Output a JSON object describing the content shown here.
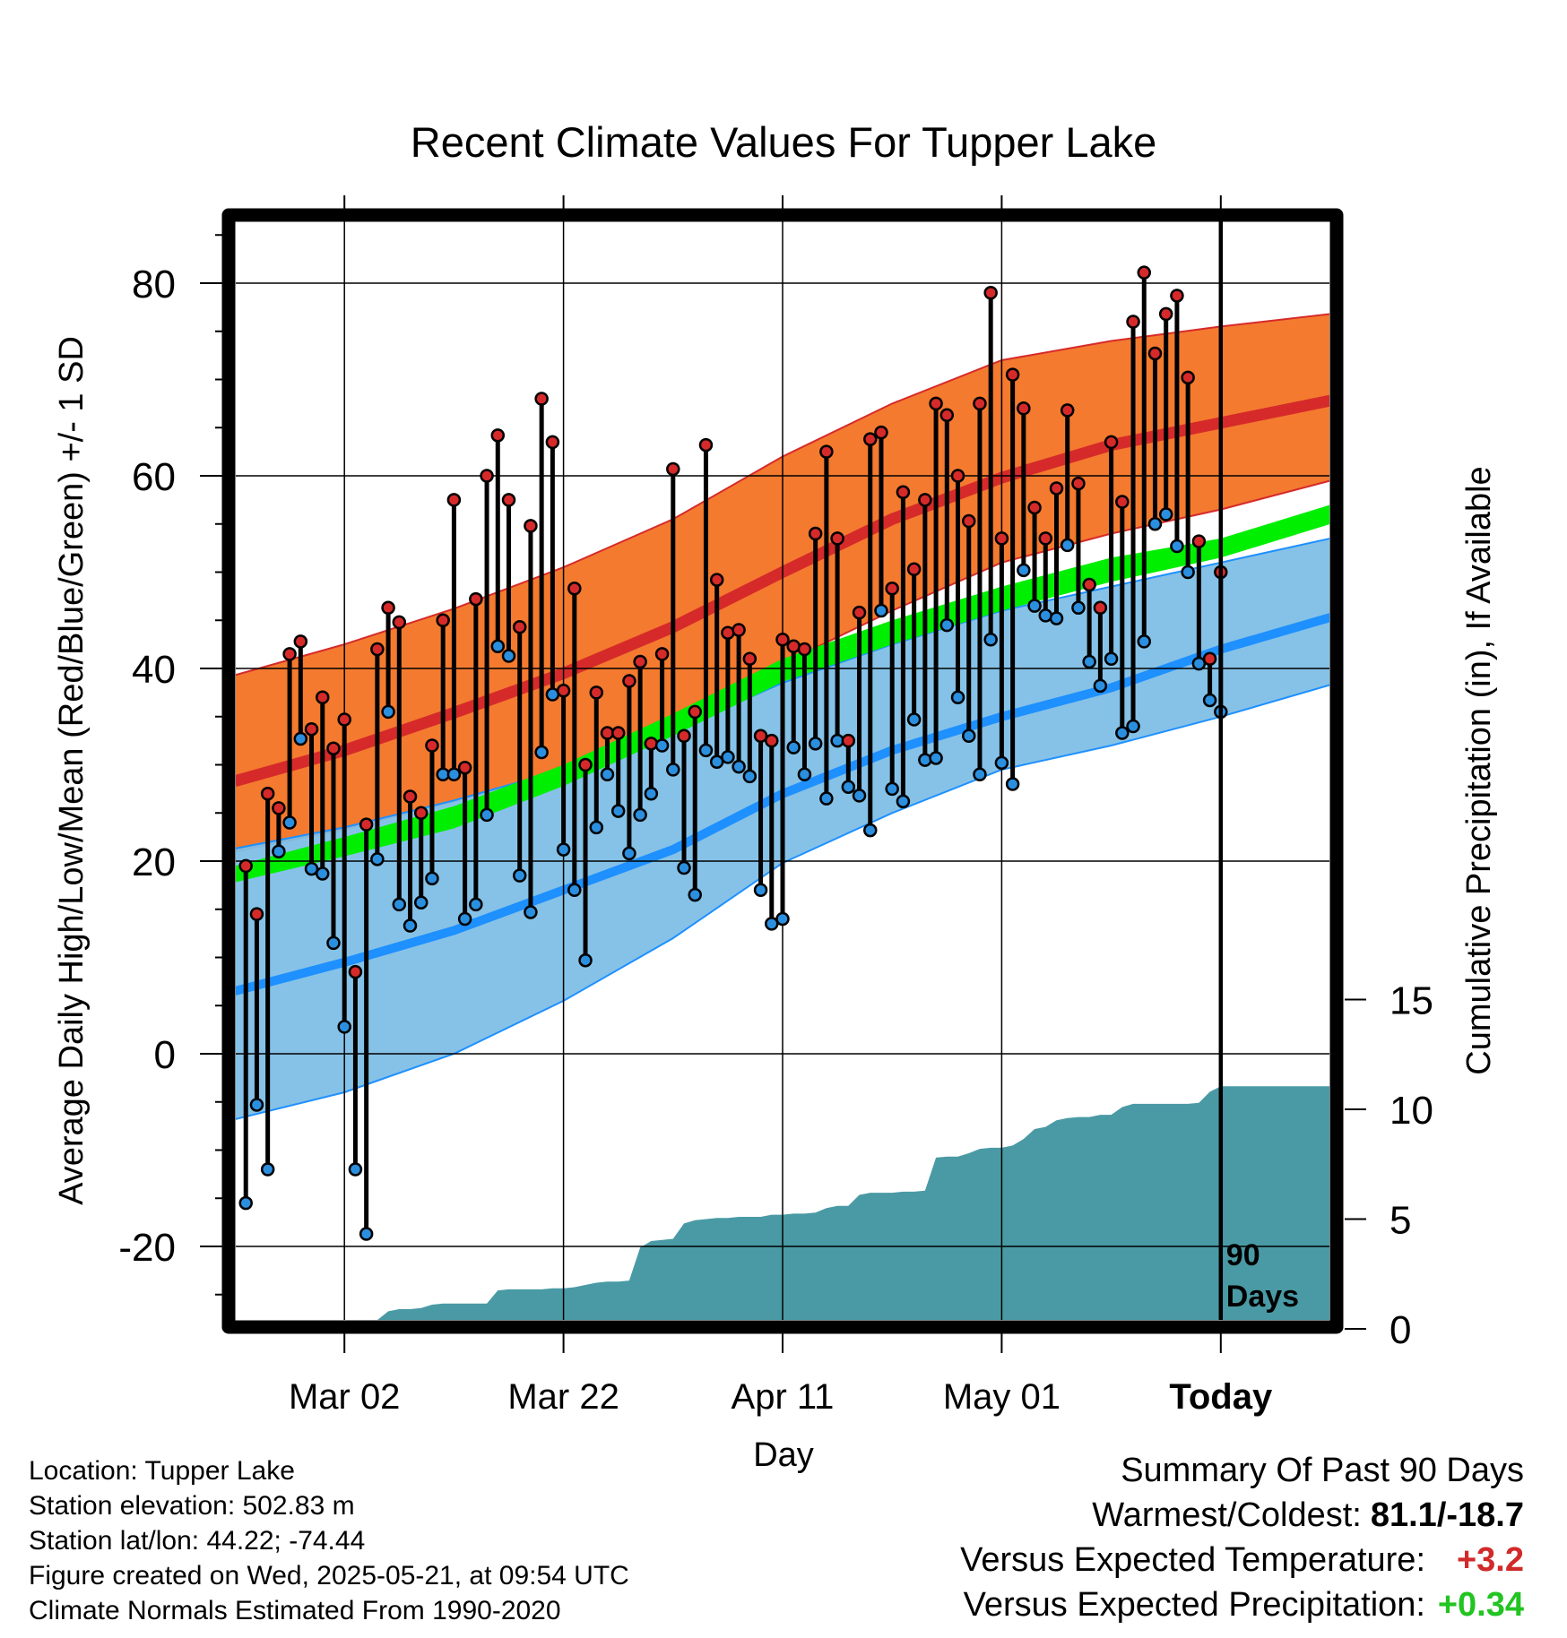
{
  "colors": {
    "high_band": "#f47a2f",
    "high_mean": "#d62a2a",
    "low_band": "#7fbfe6",
    "low_mean": "#1e90ff",
    "mean_band": "#00ee00",
    "precip_fill": "#4a9aa5",
    "high_dot": "#d62a2a",
    "low_dot": "#2b8fe0",
    "temp_anomaly": "#d12a2a",
    "precip_anomaly": "#22c422"
  },
  "footer": {
    "location": "Location: Tupper Lake",
    "elevation": "Station elevation: 502.83 m",
    "latlon": "Station lat/lon: 44.22; -74.44",
    "created": "Figure created on Wed, 2025-05-21, at 09:54 UTC",
    "normals": "Climate Normals Estimated From 1990-2020"
  },
  "summary": {
    "title": "Summary Of Past 90 Days",
    "warm_cold_label": "Warmest/Coldest:",
    "warm_cold_value": "81.1/-18.7",
    "temp_label": "Versus Expected Temperature:",
    "temp_value": "+3.2",
    "precip_label": "Versus Expected Precipitation:",
    "precip_value": "+0.34"
  },
  "chart_data": {
    "type": "line",
    "title": "Recent Climate Values For Tupper Lake",
    "xlabel": "Day",
    "ylabel": "Average Daily High/Low/Mean (Red/Blue/Green) +/- 1 SD",
    "y2label": "Cumulative Precipitation (in), If Available",
    "ylim": [
      -28,
      86
    ],
    "y_ticks": [
      -20,
      0,
      20,
      40,
      60,
      80
    ],
    "y2lim": [
      0,
      21
    ],
    "y2_ticks": [
      0,
      5,
      10,
      15
    ],
    "x_tick_labels": [
      "Mar 02",
      "Mar 22",
      "Apr 11",
      "May 01",
      "Today"
    ],
    "x_tick_days": [
      9,
      29,
      49,
      69,
      89
    ],
    "xlim": [
      -1,
      99
    ],
    "today_marker": {
      "day": 89,
      "label_line1": "90",
      "label_line2": "Days"
    },
    "grid": true,
    "normals": {
      "days": [
        -1,
        9,
        19,
        29,
        39,
        49,
        59,
        69,
        79,
        89,
        99
      ],
      "high_mean": [
        28.3,
        31.5,
        35.4,
        39.5,
        44.3,
        50,
        55.5,
        59.8,
        63.2,
        65.5,
        67.8
      ],
      "high_upper": [
        39.3,
        42.5,
        46.2,
        50.5,
        55.5,
        62,
        67.5,
        72,
        74,
        75.5,
        76.8
      ],
      "high_lower": [
        21,
        23.3,
        26.2,
        29.5,
        33.5,
        40.5,
        46,
        51,
        54,
        56.5,
        59.5
      ],
      "low_mean": [
        6.5,
        9.5,
        12.8,
        17,
        21.2,
        27,
        31.5,
        35,
        38,
        42,
        45.3
      ],
      "low_upper": [
        21.3,
        23.5,
        26.3,
        29.5,
        33.5,
        38.5,
        42.5,
        46,
        48.5,
        51,
        53.5
      ],
      "low_lower": [
        -6.8,
        -4,
        0,
        5.5,
        12,
        19.8,
        25,
        29.5,
        32,
        35,
        38.3
      ],
      "mean_upper": [
        19.5,
        22.5,
        25.7,
        30,
        35.3,
        41,
        45,
        48.5,
        51.5,
        53.5,
        57
      ],
      "mean_lower": [
        17.8,
        20.5,
        23.4,
        27.8,
        33,
        38.6,
        42.5,
        46,
        49,
        51.5,
        55
      ]
    },
    "series": [
      {
        "name": "High",
        "values": [
          19.5,
          14.5,
          27,
          25.5,
          41.5,
          42.8,
          33.7,
          37,
          31.7,
          34.7,
          8.5,
          23.8,
          42,
          46.3,
          44.8,
          26.7,
          25,
          32,
          45,
          57.5,
          29.7,
          47.2,
          60,
          64.2,
          57.5,
          44.3,
          54.8,
          68,
          63.5,
          37.7,
          48.3,
          30,
          37.5,
          33.3,
          33.3,
          38.7,
          40.7,
          32.2,
          41.5,
          60.7,
          33,
          35.5,
          63.2,
          49.2,
          43.7,
          44,
          41,
          33,
          32.5,
          43,
          42.3,
          42,
          54,
          62.5,
          53.5,
          32.5,
          45.8,
          63.8,
          64.5,
          48.3,
          58.3,
          50.3,
          57.5,
          67.5,
          66.3,
          60,
          55.3,
          67.5,
          79,
          53.5,
          70.5,
          67,
          56.7,
          53.5,
          58.7,
          66.8,
          59.2,
          48.7,
          46.3,
          63.5,
          57.3,
          76,
          81.1,
          72.7,
          76.8,
          78.7,
          70.2,
          53.2,
          41,
          50
        ]
      },
      {
        "name": "Low",
        "values": [
          -15.5,
          -5.3,
          -12,
          21,
          24,
          32.7,
          19.2,
          18.7,
          11.5,
          2.8,
          -12,
          -18.7,
          20.2,
          35.5,
          15.5,
          13.3,
          15.7,
          18.2,
          29,
          29,
          14,
          15.5,
          24.8,
          42.3,
          41.3,
          18.5,
          14.7,
          31.3,
          37.3,
          21.2,
          17,
          9.7,
          23.5,
          29,
          25.2,
          20.8,
          24.8,
          27,
          32,
          29.5,
          19.3,
          16.5,
          31.5,
          30.3,
          30.8,
          29.8,
          28.8,
          17,
          13.5,
          14,
          31.8,
          29,
          32.2,
          26.5,
          32.5,
          27.7,
          26.8,
          23.2,
          46,
          27.5,
          26.2,
          34.7,
          30.5,
          30.7,
          44.5,
          37,
          33,
          29,
          43,
          30.2,
          28,
          50.2,
          46.5,
          45.5,
          45.2,
          52.8,
          46.3,
          40.7,
          38.2,
          41,
          33.3,
          34,
          42.8,
          55,
          56,
          52.7,
          50,
          40.5,
          36.7,
          35.5
        ]
      }
    ],
    "precipitation": {
      "name": "Cumulative Precipitation",
      "days": [
        -1,
        6,
        7,
        8,
        9,
        10,
        11,
        12,
        13,
        14,
        15,
        16,
        17,
        18,
        19,
        20,
        21,
        22,
        23,
        24,
        25,
        26,
        27,
        28,
        29,
        30,
        31,
        32,
        33,
        34,
        35,
        36,
        37,
        38,
        39,
        40,
        41,
        42,
        43,
        44,
        45,
        46,
        47,
        48,
        49,
        50,
        51,
        52,
        53,
        54,
        55,
        56,
        57,
        58,
        59,
        60,
        61,
        62,
        63,
        64,
        65,
        66,
        67,
        68,
        69,
        70,
        71,
        72,
        73,
        74,
        75,
        76,
        77,
        78,
        79,
        80,
        81,
        82,
        83,
        84,
        85,
        86,
        87,
        88,
        89,
        99
      ],
      "values": [
        0,
        0,
        0.15,
        0.3,
        0.35,
        0.35,
        0.35,
        0.4,
        0.8,
        0.9,
        0.9,
        0.95,
        1.1,
        1.15,
        1.15,
        1.15,
        1.15,
        1.15,
        1.75,
        1.8,
        1.8,
        1.8,
        1.8,
        1.85,
        1.85,
        1.9,
        2,
        2.1,
        2.15,
        2.15,
        2.2,
        3.7,
        4,
        4.05,
        4.1,
        4.8,
        4.95,
        5,
        5.05,
        5.05,
        5.1,
        5.1,
        5.1,
        5.2,
        5.2,
        5.25,
        5.25,
        5.3,
        5.5,
        5.6,
        5.6,
        6.1,
        6.2,
        6.2,
        6.2,
        6.25,
        6.25,
        6.3,
        7.8,
        7.85,
        7.85,
        8,
        8.2,
        8.25,
        8.25,
        8.35,
        8.65,
        9.1,
        9.2,
        9.5,
        9.6,
        9.65,
        9.65,
        9.75,
        9.75,
        10.1,
        10.25,
        10.25,
        10.25,
        10.25,
        10.25,
        10.25,
        10.3,
        10.8,
        11.05,
        11.05
      ]
    }
  }
}
